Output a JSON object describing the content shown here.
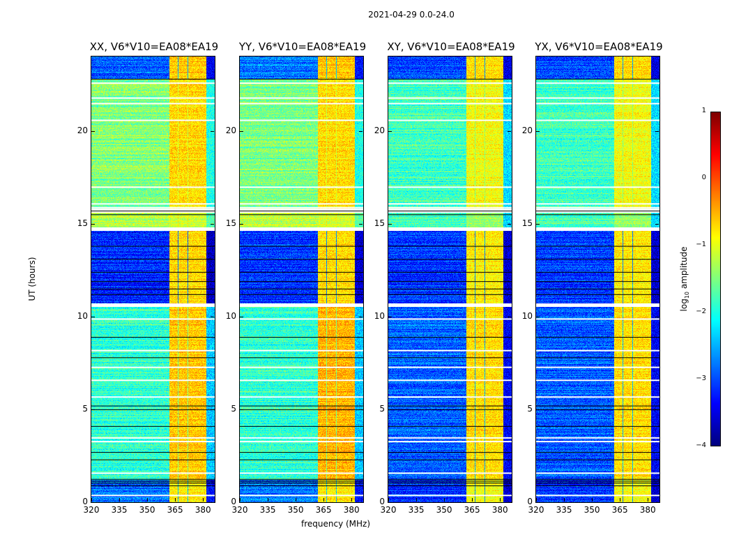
{
  "chart_data": {
    "type": "heatmap",
    "title": "2021-04-29 0.0-24.0",
    "xlabel": "frequency (MHz)",
    "ylabel": "UT (hours)",
    "xlim": [
      320,
      386.3
    ],
    "ylim": [
      0,
      24
    ],
    "xticks": [
      320,
      335,
      350,
      365,
      380
    ],
    "yticks": [
      0,
      5,
      10,
      15,
      20
    ],
    "colormap": "jet",
    "colorbar": {
      "label_prefix": "log",
      "label_sub": "10",
      "label_suffix": " amplitude",
      "range": [
        -4,
        1
      ],
      "ticks": [
        1,
        0,
        -1,
        -2,
        -3,
        -4
      ],
      "tick_labels": [
        "1",
        "0",
        "−1",
        "−2",
        "−3",
        "−4"
      ]
    },
    "rfi_subbands_mhz": [
      [
        361.8,
        366.5
      ],
      [
        366.8,
        371.6
      ],
      [
        371.9,
        376.4
      ],
      [
        376.7,
        381.8
      ]
    ],
    "panels": [
      {
        "title": "XX, V6*V10=EA08*EA19",
        "segments": [
          {
            "t0": 22.8,
            "t1": 24.0,
            "base": -2.9,
            "rfi": -0.6
          },
          {
            "t0": 15.8,
            "t1": 22.8,
            "base": -1.5,
            "rfi": -0.7
          },
          {
            "t0": 14.8,
            "t1": 15.6,
            "base": -1.2,
            "rfi": -1.1
          },
          {
            "t0": 10.7,
            "t1": 14.6,
            "base": -3.2,
            "rfi": -0.7
          },
          {
            "t0": 1.2,
            "t1": 10.5,
            "base": -1.9,
            "rfi": -0.6
          },
          {
            "t0": 0.0,
            "t1": 1.2,
            "base": -2.8,
            "rfi": -0.8
          }
        ]
      },
      {
        "title": "YY, V6*V10=EA08*EA19",
        "segments": [
          {
            "t0": 22.8,
            "t1": 24.0,
            "base": -2.8,
            "rfi": -0.6
          },
          {
            "t0": 15.8,
            "t1": 22.8,
            "base": -1.5,
            "rfi": -0.7
          },
          {
            "t0": 14.8,
            "t1": 15.6,
            "base": -1.2,
            "rfi": -1.1
          },
          {
            "t0": 10.7,
            "t1": 14.6,
            "base": -3.1,
            "rfi": -0.7
          },
          {
            "t0": 1.2,
            "t1": 10.5,
            "base": -1.9,
            "rfi": -0.5
          },
          {
            "t0": 0.0,
            "t1": 1.2,
            "base": -2.8,
            "rfi": -0.8
          }
        ]
      },
      {
        "title": "XY, V6*V10=EA08*EA19",
        "segments": [
          {
            "t0": 22.8,
            "t1": 24.0,
            "base": -3.0,
            "rfi": -0.7
          },
          {
            "t0": 15.8,
            "t1": 22.8,
            "base": -1.8,
            "rfi": -0.9
          },
          {
            "t0": 14.8,
            "t1": 15.6,
            "base": -1.8,
            "rfi": -1.4
          },
          {
            "t0": 10.7,
            "t1": 14.6,
            "base": -3.1,
            "rfi": -0.8
          },
          {
            "t0": 1.2,
            "t1": 10.5,
            "base": -2.9,
            "rfi": -0.7
          },
          {
            "t0": 0.0,
            "t1": 1.2,
            "base": -3.1,
            "rfi": -0.9
          }
        ]
      },
      {
        "title": "YX, V6*V10=EA08*EA19",
        "segments": [
          {
            "t0": 22.8,
            "t1": 24.0,
            "base": -3.0,
            "rfi": -0.7
          },
          {
            "t0": 15.8,
            "t1": 22.8,
            "base": -1.8,
            "rfi": -0.9
          },
          {
            "t0": 14.8,
            "t1": 15.6,
            "base": -1.8,
            "rfi": -1.4
          },
          {
            "t0": 10.7,
            "t1": 14.6,
            "base": -3.1,
            "rfi": -0.8
          },
          {
            "t0": 1.2,
            "t1": 10.5,
            "base": -2.9,
            "rfi": -0.7
          },
          {
            "t0": 0.0,
            "t1": 1.2,
            "base": -3.1,
            "rfi": -0.9
          }
        ]
      }
    ],
    "flagged_white_rows_ut": [
      22.6,
      21.8,
      21.5,
      20.6,
      17.0,
      16.1,
      15.9,
      14.7,
      10.6,
      9.9,
      8.2,
      7.3,
      6.6,
      5.7,
      3.5,
      3.3,
      1.6,
      0.4
    ],
    "dark_rows_ut": [
      22.8,
      15.7,
      15.5,
      13.8,
      13.1,
      12.4,
      11.9,
      11.5,
      11.2,
      8.9,
      7.8,
      5.2,
      5.0,
      4.1,
      2.7,
      2.3,
      1.25,
      1.15,
      1.05,
      0.9
    ]
  }
}
